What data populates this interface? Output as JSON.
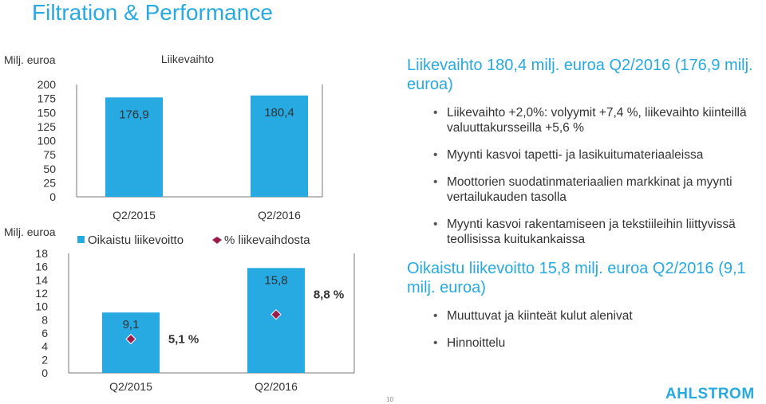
{
  "slide": {
    "title": "Filtration & Performance",
    "page_number": "10",
    "logo_text": "AHLSTROM"
  },
  "colors": {
    "bar": "#27a9e1",
    "marker": "#9b1d4a",
    "title": "#27a9e1"
  },
  "chart_data": [
    {
      "type": "bar",
      "title": "Liikevaihto",
      "ylabel": "Milj. euroa",
      "categories": [
        "Q2/2015",
        "Q2/2016"
      ],
      "values": [
        176.9,
        180.4
      ],
      "data_labels": [
        "176,9",
        "180,4"
      ],
      "ylim": [
        0,
        200
      ],
      "yticks": [
        "0",
        "25",
        "50",
        "75",
        "100",
        "125",
        "150",
        "175",
        "200"
      ],
      "grid": false
    },
    {
      "type": "bar",
      "ylabel": "Milj. euroa",
      "categories": [
        "Q2/2015",
        "Q2/2016"
      ],
      "legend_position": "top",
      "ylim": [
        0,
        18
      ],
      "yticks": [
        "0",
        "2",
        "4",
        "6",
        "8",
        "10",
        "12",
        "14",
        "16",
        "18"
      ],
      "grid": false,
      "series": [
        {
          "name": "Oikaistu liikevoitto",
          "type": "bar",
          "values": [
            9.1,
            15.8
          ],
          "data_labels": [
            "9,1",
            "15,8"
          ]
        },
        {
          "name": "% liikevaihdosta",
          "type": "scatter",
          "marker": "diamond",
          "values": [
            5.1,
            8.8
          ],
          "data_labels": [
            "5,1 %",
            "8,8 %"
          ]
        }
      ]
    }
  ],
  "sections": [
    {
      "heading": "Liikevaihto 180,4 milj. euroa Q2/2016 (176,9 milj. euroa)",
      "bullets": [
        "Liikevaihto +2,0%: volyymit +7,4 %, liikevaihto kiinteillä valuuttakursseilla +5,6 %",
        "Myynti kasvoi tapetti- ja lasikuitumateriaaleissa",
        "Moottorien suodatinmateriaalien markkinat ja myynti vertailukauden tasolla",
        "Myynti kasvoi rakentamiseen ja tekstiileihin liittyvissä teollisissa kuitukankaissa"
      ]
    },
    {
      "heading": "Oikaistu liikevoitto 15,8 milj. euroa Q2/2016 (9,1 milj. euroa)",
      "bullets": [
        "Muuttuvat ja kiinteät kulut alenivat",
        "Hinnoittelu"
      ]
    }
  ]
}
